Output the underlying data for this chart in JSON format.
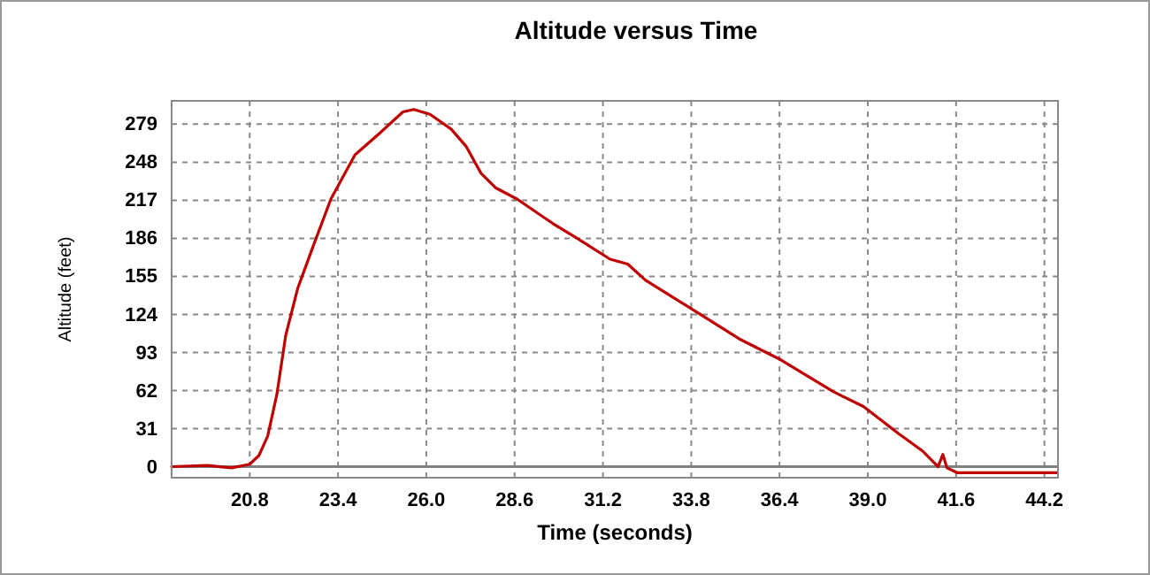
{
  "chart_data": {
    "type": "line",
    "title": "Altitude versus Time",
    "xlabel": "Time (seconds)",
    "ylabel": "Altitude (feet)",
    "x": [
      18.5,
      19.56,
      20.27,
      20.8,
      21.07,
      21.33,
      21.6,
      21.86,
      22.21,
      22.66,
      23.19,
      23.9,
      24.6,
      25.31,
      25.63,
      26.11,
      26.73,
      27.17,
      27.61,
      28.05,
      28.67,
      29.73,
      30.44,
      31.41,
      31.93,
      32.45,
      33.84,
      35.22,
      36.44,
      37.99,
      38.87,
      39.9,
      40.6,
      41.07,
      41.21,
      41.33,
      41.64,
      44.58
    ],
    "series": [
      {
        "color": "#c00000",
        "values": [
          0,
          1,
          -1,
          2,
          9,
          25,
          59,
          107,
          145,
          179,
          218,
          254,
          271,
          289,
          291,
          287,
          275,
          261,
          239,
          227,
          218,
          198,
          186,
          169,
          165,
          152,
          128,
          104,
          87,
          61,
          49,
          27,
          13,
          0,
          10,
          -1,
          -5,
          -5
        ]
      }
    ],
    "xlim": [
      18.5,
      44.6
    ],
    "ylim": [
      -9,
      298
    ],
    "xticks": [
      20.8,
      23.4,
      {
        "value": 26,
        "label": "26.0"
      },
      28.6,
      31.2,
      33.8,
      36.4,
      {
        "value": 39,
        "label": "39.0"
      },
      41.6,
      44.2
    ],
    "yticks": [
      0,
      31,
      62,
      93,
      124,
      155,
      186,
      217,
      248,
      279
    ],
    "grid": true,
    "marker": "none",
    "line_style": "solid",
    "ref_lines": [
      {
        "axis": "y",
        "value": 0,
        "color": "#808080"
      }
    ]
  }
}
